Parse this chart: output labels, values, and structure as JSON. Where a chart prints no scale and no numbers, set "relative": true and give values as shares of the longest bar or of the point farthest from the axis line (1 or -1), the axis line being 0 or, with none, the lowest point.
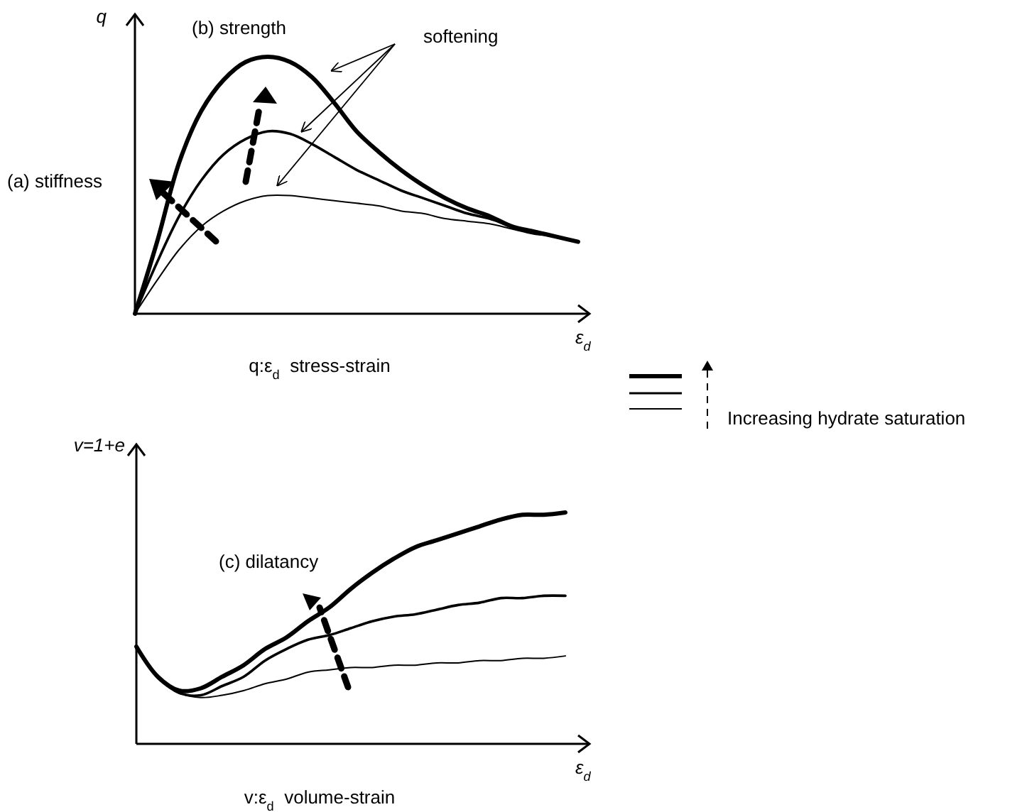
{
  "chart_data": [
    {
      "type": "line",
      "title": "q:ε$_{d}$  stress-strain",
      "xlabel": "ε$_{d}$",
      "ylabel": "q",
      "relative": true,
      "categories": [
        null,
        null,
        null,
        null,
        null,
        null,
        null,
        null,
        null,
        null,
        null,
        null,
        null,
        null,
        null,
        null,
        null,
        null,
        null,
        null,
        null
      ],
      "series": [
        {
          "color": "#000000",
          "values": [
            0,
            0.28,
            0.59,
            0.79,
            0.91,
            0.98,
            1.0,
            0.98,
            0.92,
            0.82,
            0.71,
            0.63,
            0.56,
            0.5,
            0.45,
            0.41,
            0.38,
            0.34,
            0.32,
            0.3,
            0.28
          ]
        },
        {
          "color": "#000000",
          "values": [
            0,
            0.2,
            0.38,
            0.52,
            0.62,
            0.68,
            0.71,
            0.7,
            0.66,
            0.61,
            0.56,
            0.52,
            0.48,
            0.45,
            0.42,
            0.39,
            0.37,
            0.34,
            0.32,
            0.3,
            0.28
          ]
        },
        {
          "color": "#000000",
          "values": [
            0,
            0.13,
            0.25,
            0.34,
            0.4,
            0.44,
            0.46,
            0.46,
            0.45,
            0.44,
            0.43,
            0.42,
            0.4,
            0.39,
            0.37,
            0.36,
            0.35,
            0.33,
            0.31,
            0.3,
            0.28
          ]
        }
      ],
      "annotations": [
        "(a) stiffness",
        "(b) strength",
        "softening",
        "Increasing hydrate saturation"
      ]
    },
    {
      "type": "line",
      "title": "v:ε$_{d}$  volume-strain",
      "xlabel": "ε$_{d}$",
      "ylabel": "v=1+e",
      "relative": true,
      "categories": [
        null,
        null,
        null,
        null,
        null,
        null,
        null,
        null,
        null,
        null,
        null,
        null,
        null,
        null,
        null,
        null,
        null,
        null,
        null,
        null,
        null
      ],
      "series": [
        {
          "color": "#000000",
          "values": [
            0.42,
            0.29,
            0.23,
            0.24,
            0.29,
            0.34,
            0.41,
            0.46,
            0.53,
            0.59,
            0.67,
            0.74,
            0.8,
            0.85,
            0.88,
            0.91,
            0.94,
            0.97,
            0.99,
            0.99,
            1.0
          ]
        },
        {
          "color": "#000000",
          "values": [
            0.42,
            0.29,
            0.22,
            0.21,
            0.25,
            0.29,
            0.36,
            0.41,
            0.45,
            0.47,
            0.5,
            0.53,
            0.55,
            0.56,
            0.58,
            0.6,
            0.61,
            0.63,
            0.63,
            0.64,
            0.64
          ]
        },
        {
          "color": "#000000",
          "values": [
            0.42,
            0.29,
            0.22,
            0.2,
            0.21,
            0.23,
            0.26,
            0.28,
            0.31,
            0.32,
            0.33,
            0.33,
            0.34,
            0.34,
            0.35,
            0.35,
            0.36,
            0.36,
            0.37,
            0.37,
            0.38
          ]
        }
      ],
      "annotations": [
        "(c) dilatancy"
      ]
    }
  ]
}
